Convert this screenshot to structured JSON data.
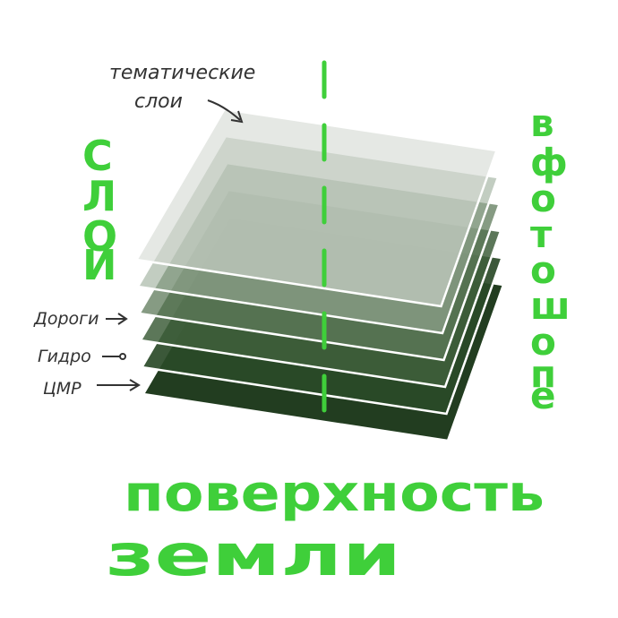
{
  "annotation": {
    "thematic_line1": "тематические",
    "thematic_line2": "слои"
  },
  "left_title": [
    "С",
    "Л",
    "О",
    "И"
  ],
  "right_title": [
    "в",
    "ф",
    "о",
    "т",
    "о",
    "ш",
    "о",
    "п",
    "е"
  ],
  "labels": {
    "roads": "Дороги",
    "hydro": "Гидро",
    "dem": "ЦМР"
  },
  "bottom": {
    "line1": "поверхность",
    "line2": "земли"
  },
  "colors": {
    "accent": "#3fcf3a",
    "ink": "#333333",
    "layer_darkest": "#1f3a1e"
  },
  "layers": [
    {
      "fill": "#223d20",
      "opacity": 1.0
    },
    {
      "fill": "#2a4a28",
      "opacity": 0.92
    },
    {
      "fill": "#3f5f3c",
      "opacity": 0.85
    },
    {
      "fill": "#5d7a5a",
      "opacity": 0.75
    },
    {
      "fill": "#9aab98",
      "opacity": 0.6
    },
    {
      "fill": "#d3d9d2",
      "opacity": 0.6
    }
  ]
}
